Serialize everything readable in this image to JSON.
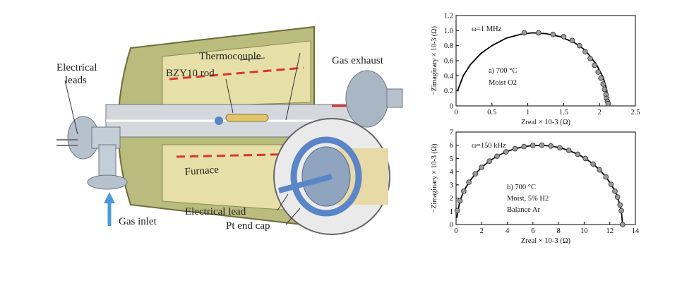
{
  "diagram": {
    "labels": {
      "electrical_leads_1": "Electrical",
      "electrical_leads_2": "leads",
      "thermocouple": "Thermocouple",
      "bzy10_rod": "BZY10 rod",
      "gas_exhaust": "Gas exhaust",
      "furnace": "Furnace",
      "gas_inlet": "Gas inlet",
      "electrical_lead": "Electrical lead",
      "pt_end_cap": "Pt end cap"
    }
  },
  "chart_data": [
    {
      "type": "scatter",
      "x_label": "Zreal × 10-3 (Ω)",
      "y_label": "−Zimaginary × 10-3 (Ω)",
      "annotations": [
        "ω=1 MHz",
        "a) 700 °C",
        "Moist O2"
      ],
      "xlim": [
        0,
        2.5
      ],
      "xticks": [
        0,
        0.5,
        1,
        1.5,
        2,
        2.5
      ],
      "ylim": [
        0,
        1.2
      ],
      "yticks": [
        0,
        0.2,
        0.4,
        0.6,
        0.8,
        {
          "value": 1,
          "label": "1.0"
        },
        1.2
      ],
      "series": [
        {
          "mode": "line",
          "color": "#000000",
          "x": [
            0.02,
            0.1,
            0.2,
            0.35,
            0.5,
            0.7,
            0.9,
            1.06,
            1.25,
            1.45,
            1.65,
            1.8,
            1.95,
            2.05,
            2.1,
            2.12
          ],
          "values": [
            0.2,
            0.4,
            0.55,
            0.7,
            0.8,
            0.9,
            0.95,
            0.97,
            0.96,
            0.92,
            0.84,
            0.74,
            0.56,
            0.38,
            0.22,
            0
          ]
        },
        {
          "mode": "markers",
          "color": "#9a9a9a",
          "x": [
            0.95,
            1.15,
            1.35,
            1.5,
            1.62,
            1.72,
            1.8,
            1.87,
            1.93,
            1.98,
            2.02,
            2.05,
            2.07,
            2.09,
            2.1,
            2.11,
            2.12
          ],
          "values": [
            0.97,
            0.97,
            0.95,
            0.92,
            0.87,
            0.8,
            0.72,
            0.63,
            0.54,
            0.45,
            0.37,
            0.29,
            0.22,
            0.15,
            0.1,
            0.06,
            0.03
          ]
        }
      ]
    },
    {
      "type": "scatter",
      "x_label": "Zreal × 10-3 (Ω)",
      "y_label": "−Zimaginary × 10-3 (Ω)",
      "annotations": [
        "ω=150 kHz",
        "b) 700 °C",
        "Moist, 5% H2",
        "Balance Ar"
      ],
      "xlim": [
        0,
        14
      ],
      "xticks": [
        0,
        2,
        4,
        6,
        8,
        10,
        12,
        14
      ],
      "ylim": [
        0,
        7
      ],
      "yticks": [
        0,
        1,
        2,
        3,
        4,
        5,
        6,
        7
      ],
      "series": [
        {
          "mode": "line",
          "color": "#000000",
          "x": [
            0.05,
            0.3,
            0.6,
            1,
            1.5,
            2,
            2.6,
            3.2,
            3.9,
            4.6,
            5.3,
            6,
            6.7,
            7.4,
            8.1,
            8.8,
            9.5,
            10.1,
            10.7,
            11.2,
            11.7,
            12.1,
            12.4,
            12.6,
            12.8,
            12.9,
            13
          ],
          "values": [
            0.5,
            1.8,
            2.52,
            3.2,
            3.83,
            4.33,
            4.8,
            5.17,
            5.5,
            5.74,
            5.9,
            5.98,
            6,
            5.94,
            5.81,
            5.61,
            5.32,
            5,
            4.58,
            4.14,
            3.6,
            3.04,
            2.52,
            2.08,
            1.48,
            1.05,
            0
          ]
        },
        {
          "mode": "markers",
          "color": "#9a9a9a",
          "x": [
            0.1,
            0.3,
            0.6,
            1,
            1.5,
            2,
            2.6,
            3.2,
            3.9,
            4.6,
            5.3,
            6,
            6.7,
            7.4,
            8.1,
            8.8,
            9.5,
            10.1,
            10.7,
            11.2,
            11.7,
            12.1,
            12.4,
            12.6,
            12.8,
            12.9,
            13
          ],
          "values": [
            1.05,
            1.8,
            2.52,
            3.2,
            3.83,
            4.33,
            4.8,
            5.17,
            5.5,
            5.74,
            5.9,
            5.98,
            6,
            5.94,
            5.81,
            5.61,
            5.32,
            5,
            4.58,
            4.14,
            3.6,
            3.04,
            2.52,
            2.08,
            1.48,
            1.05,
            0
          ]
        }
      ]
    }
  ]
}
